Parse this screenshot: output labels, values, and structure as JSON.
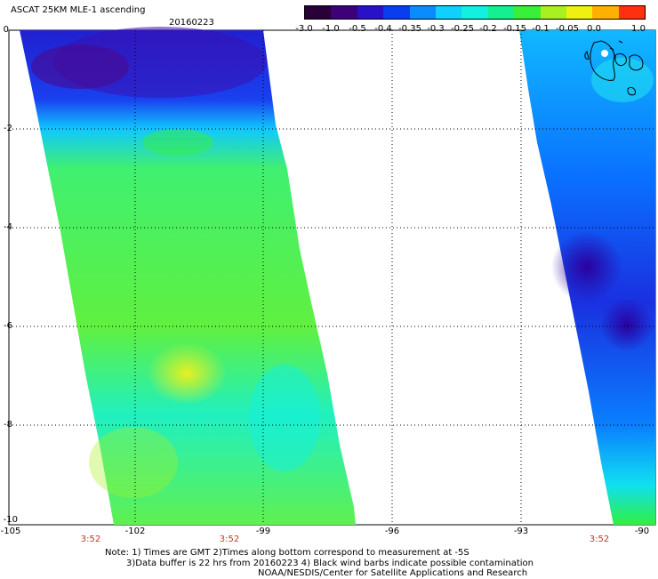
{
  "title": "ASCAT 25KM MLE-1 ascending",
  "date": "20160223",
  "colorbar": {
    "ticks": [
      "-3.0",
      "-1.0",
      "-0.5",
      "-0.4",
      "-0.35",
      "-0.3",
      "-0.25",
      "-0.2",
      "-0.15",
      "-0.1",
      "-0.05",
      "0.0",
      "1.0"
    ],
    "colors": [
      "#2a0038",
      "#3d007a",
      "#2a10c8",
      "#0a3cf0",
      "#0a8cff",
      "#10d0ff",
      "#14f0e0",
      "#14f090",
      "#38f038",
      "#a8f020",
      "#f0f010",
      "#ffb000",
      "#ff3010"
    ]
  },
  "y_axis": {
    "labels": [
      "0",
      "-2",
      "-4",
      "-6",
      "-8",
      "-10"
    ]
  },
  "x_axis": {
    "labels": [
      "-105",
      "-102",
      "-99",
      "-96",
      "-93",
      "-90"
    ]
  },
  "time_labels": [
    "3:52",
    "3:52",
    "3:52"
  ],
  "notes": {
    "line1": "Note: 1) Times are GMT 2)Times along bottom correspond to measurement at -5S",
    "line2": "3)Data buffer is 22 hrs from 20160223 4) Black wind barbs indicate possible contamination",
    "line3": "NOAA/NESDIS/Center for Satellite Applications and Research"
  }
}
